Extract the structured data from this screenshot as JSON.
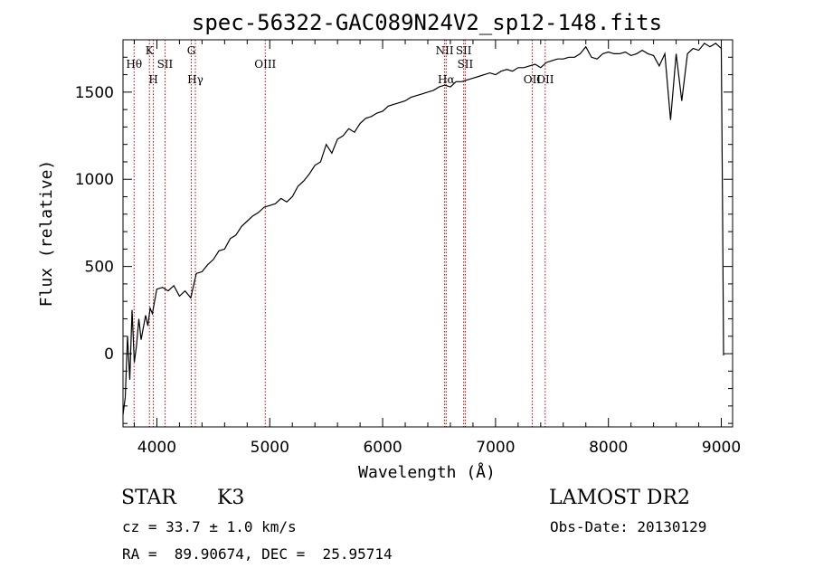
{
  "chart_data": {
    "type": "line",
    "title": "spec-56322-GAC089N24V2_sp12-148.fits",
    "xlabel": "Wavelength (Å)",
    "ylabel": "Flux (relative)",
    "xlim": [
      3700,
      9100
    ],
    "ylim": [
      -420,
      1800
    ],
    "xticks": [
      4000,
      5000,
      6000,
      7000,
      8000,
      9000
    ],
    "yticks": [
      0,
      500,
      1000,
      1500
    ],
    "grid": false,
    "series": [
      {
        "x": [
          3700,
          3720,
          3740,
          3760,
          3780,
          3800,
          3820,
          3840,
          3860,
          3880,
          3900,
          3920,
          3940,
          3960,
          3980,
          4000,
          4050,
          4100,
          4150,
          4200,
          4250,
          4300,
          4350,
          4400,
          4450,
          4500,
          4550,
          4600,
          4650,
          4700,
          4750,
          4800,
          4850,
          4900,
          4950,
          5000,
          5050,
          5100,
          5150,
          5200,
          5250,
          5300,
          5350,
          5400,
          5450,
          5500,
          5550,
          5600,
          5650,
          5700,
          5750,
          5800,
          5850,
          5900,
          5950,
          6000,
          6050,
          6100,
          6150,
          6200,
          6250,
          6300,
          6350,
          6400,
          6450,
          6500,
          6550,
          6600,
          6650,
          6700,
          6750,
          6800,
          6850,
          6900,
          6950,
          7000,
          7050,
          7100,
          7150,
          7200,
          7250,
          7300,
          7350,
          7400,
          7450,
          7500,
          7550,
          7600,
          7650,
          7700,
          7750,
          7800,
          7850,
          7900,
          7950,
          8000,
          8050,
          8100,
          8150,
          8200,
          8250,
          8300,
          8350,
          8400,
          8450,
          8500,
          8550,
          8600,
          8650,
          8700,
          8750,
          8800,
          8850,
          8900,
          8950,
          9000,
          9010,
          9020
        ],
        "y": [
          -350,
          -250,
          100,
          -150,
          250,
          -50,
          50,
          200,
          80,
          150,
          220,
          160,
          260,
          230,
          300,
          370,
          380,
          360,
          390,
          330,
          360,
          320,
          460,
          470,
          510,
          540,
          590,
          600,
          660,
          680,
          730,
          760,
          790,
          810,
          840,
          850,
          860,
          890,
          870,
          900,
          960,
          990,
          1030,
          1080,
          1100,
          1200,
          1150,
          1230,
          1250,
          1290,
          1270,
          1320,
          1350,
          1360,
          1380,
          1390,
          1420,
          1430,
          1440,
          1450,
          1470,
          1480,
          1490,
          1500,
          1510,
          1530,
          1540,
          1530,
          1560,
          1560,
          1570,
          1580,
          1590,
          1600,
          1610,
          1600,
          1620,
          1630,
          1620,
          1640,
          1640,
          1650,
          1660,
          1640,
          1670,
          1680,
          1690,
          1690,
          1700,
          1700,
          1720,
          1760,
          1700,
          1690,
          1720,
          1730,
          1720,
          1720,
          1730,
          1710,
          1720,
          1740,
          1720,
          1710,
          1650,
          1720,
          1340,
          1720,
          1450,
          1720,
          1750,
          1740,
          1780,
          1760,
          1780,
          1750,
          900,
          -10
        ]
      }
    ],
    "spectral_lines": [
      {
        "name": "Hθ",
        "wavelength": 3798
      },
      {
        "name": "K",
        "wavelength": 3934
      },
      {
        "name": "H",
        "wavelength": 3969
      },
      {
        "name": "SII",
        "wavelength": 4072
      },
      {
        "name": "G",
        "wavelength": 4305
      },
      {
        "name": "Hγ",
        "wavelength": 4341
      },
      {
        "name": "OIII",
        "wavelength": 4960
      },
      {
        "name": "NII",
        "wavelength": 6549
      },
      {
        "name": "Hα",
        "wavelength": 6563
      },
      {
        "name": "SII",
        "wavelength": 6718
      },
      {
        "name": "SII",
        "wavelength": 6732
      },
      {
        "name": "OII",
        "wavelength": 7325
      },
      {
        "name": "OII",
        "wavelength": 7440
      }
    ],
    "line_color": "#000000",
    "marker_color": "#cc0000"
  },
  "info": {
    "class_label": "STAR",
    "subclass_label": "K3",
    "survey_label": "LAMOST DR2",
    "redshift_line": "cz = 33.7 ± 1.0 km/s",
    "obs_date_line": "Obs-Date: 20130129",
    "coords_line": "RA =  89.90674, DEC =  25.95714"
  }
}
